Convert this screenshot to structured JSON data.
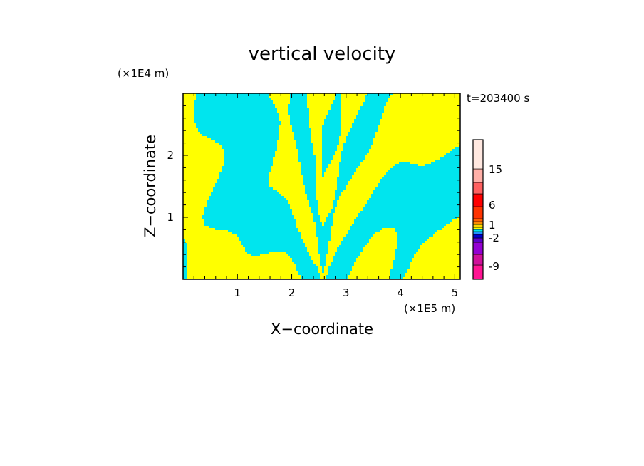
{
  "chart_data": {
    "type": "heatmap",
    "title": "vertical velocity",
    "xlabel": "X−coordinate",
    "ylabel": "Z−coordinate",
    "x_unit": "(×1E5 m)",
    "y_unit": "(×1E4 m)",
    "time_label": "t=203400 s",
    "xlim": [
      0,
      5.1
    ],
    "ylim": [
      0,
      3.0
    ],
    "x_ticks": [
      "1",
      "2",
      "3",
      "4",
      "5"
    ],
    "y_ticks": [
      "1",
      "2"
    ],
    "x_tick_values": [
      1,
      2,
      3,
      4,
      5
    ],
    "y_tick_values": [
      1,
      2
    ],
    "field_colors": {
      "positive": "#ffff00",
      "negative": "#00e5ee"
    },
    "colorbar": {
      "levels": [
        "-9",
        "-2",
        "1",
        "6",
        "15"
      ],
      "colors": [
        "#ff1493",
        "#d0109a",
        "#9400d3",
        "#5a00cc",
        "#0000cd",
        "#1e90ff",
        "#00e5ee",
        "#ffff00",
        "#ffd700",
        "#ff8c00",
        "#ff6000",
        "#ff3300",
        "#ff0000",
        "#ff6060",
        "#ffb0a8",
        "#ffe8e0"
      ]
    }
  }
}
